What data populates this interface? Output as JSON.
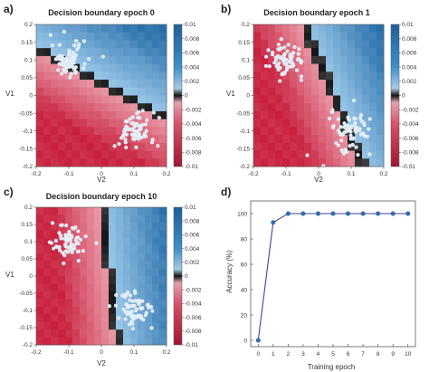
{
  "figure": {
    "panels": [
      {
        "letter": "a)",
        "title": "Decision boundary epoch 0",
        "xlabel": "V2",
        "ylabel": "V1"
      },
      {
        "letter": "b)",
        "title": "Decision boundary epoch 1",
        "xlabel": "V2",
        "ylabel": "V1"
      },
      {
        "letter": "c)",
        "title": "Decision boundary epoch 10",
        "xlabel": "V2",
        "ylabel": "V1"
      },
      {
        "letter": "d)",
        "title": "",
        "xlabel": "Training epoch",
        "ylabel": "Accuracy (%)"
      }
    ]
  },
  "colors": {
    "positive": "#1f6fa8",
    "negative": "#c8203e",
    "boundary": "#111111",
    "accuracy_line": "#4b3f9a",
    "points": "#d9e8f6"
  },
  "chart_data": [
    {
      "type": "heatmap",
      "title": "Decision boundary epoch 0",
      "xlabel": "V2",
      "ylabel": "V1",
      "xlim": [
        -0.2,
        0.2
      ],
      "ylim": [
        -0.2,
        0.2
      ],
      "xticks": [
        "-0.2",
        "-0.1",
        "0",
        "0.1",
        "0.2"
      ],
      "yticks": [
        "0.2",
        "0.15",
        "0.1",
        "0.05",
        "0",
        "-0.05",
        "-0.1",
        "-0.15",
        "-0.2"
      ],
      "colorbar_ticks": [
        "0.01",
        "0.008",
        "0.006",
        "0.004",
        "0.002",
        "0",
        "-0.002",
        "-0.004",
        "-0.006",
        "-0.008",
        "-0.01"
      ],
      "colorbar_range": [
        -0.01,
        0.01
      ],
      "boundary": {
        "slope": -0.5,
        "intercept": 0.035
      },
      "clusters": [
        {
          "center": [
            -0.1,
            0.1
          ],
          "spread": 0.03
        },
        {
          "center": [
            0.1,
            -0.1
          ],
          "spread": 0.035
        }
      ]
    },
    {
      "type": "heatmap",
      "title": "Decision boundary epoch 1",
      "xlabel": "V2",
      "ylabel": "V1",
      "xlim": [
        -0.2,
        0.2
      ],
      "ylim": [
        -0.2,
        0.2
      ],
      "xticks": [
        "-0.2",
        "-0.1",
        "0",
        "0.1",
        "0.2"
      ],
      "yticks": [
        "0.2",
        "0.15",
        "0.1",
        "0.05",
        "0",
        "-0.05",
        "-0.1",
        "-0.15",
        "-0.2"
      ],
      "colorbar_ticks": [
        "0.01",
        "0.008",
        "0.006",
        "0.004",
        "0.002",
        "0",
        "-0.002",
        "-0.004",
        "-0.006",
        "-0.008",
        "-0.01"
      ],
      "colorbar_range": [
        -0.01,
        0.01
      ],
      "boundary": {
        "slope": -2.2,
        "intercept": 0.1
      },
      "clusters": [
        {
          "center": [
            -0.1,
            0.1
          ],
          "spread": 0.03
        },
        {
          "center": [
            0.1,
            -0.1
          ],
          "spread": 0.035
        }
      ]
    },
    {
      "type": "heatmap",
      "title": "Decision boundary epoch 10",
      "xlabel": "V2",
      "ylabel": "V1",
      "xlim": [
        -0.2,
        0.2
      ],
      "ylim": [
        -0.2,
        0.2
      ],
      "xticks": [
        "-0.2",
        "-0.1",
        "0",
        "0.1",
        "0.2"
      ],
      "yticks": [
        "0.2",
        "0.15",
        "0.1",
        "0.05",
        "0",
        "-0.05",
        "-0.1",
        "-0.15",
        "-0.2"
      ],
      "colorbar_ticks": [
        "0.01",
        "0.008",
        "0.006",
        "0.004",
        "0.002",
        "0",
        "-0.002",
        "-0.004",
        "-0.006",
        "-0.008",
        "-0.01"
      ],
      "colorbar_range": [
        -0.01,
        0.01
      ],
      "boundary": {
        "slope": -8,
        "intercept": 0.2
      },
      "clusters": [
        {
          "center": [
            -0.1,
            0.1
          ],
          "spread": 0.03
        },
        {
          "center": [
            0.1,
            -0.1
          ],
          "spread": 0.035
        }
      ]
    },
    {
      "type": "line",
      "title": "",
      "xlabel": "Training epoch",
      "ylabel": "Accuracy (%)",
      "x": [
        0,
        1,
        2,
        3,
        4,
        5,
        6,
        7,
        8,
        9,
        10
      ],
      "y": [
        0,
        93,
        100,
        100,
        100,
        100,
        100,
        100,
        100,
        100,
        100
      ],
      "xlim": [
        -0.5,
        10.5
      ],
      "ylim": [
        -5,
        110
      ],
      "xticks": [
        "0",
        "1",
        "2",
        "3",
        "4",
        "5",
        "6",
        "7",
        "8",
        "9",
        "10"
      ],
      "yticks": [
        "0",
        "20",
        "40",
        "60",
        "80",
        "100"
      ]
    }
  ]
}
